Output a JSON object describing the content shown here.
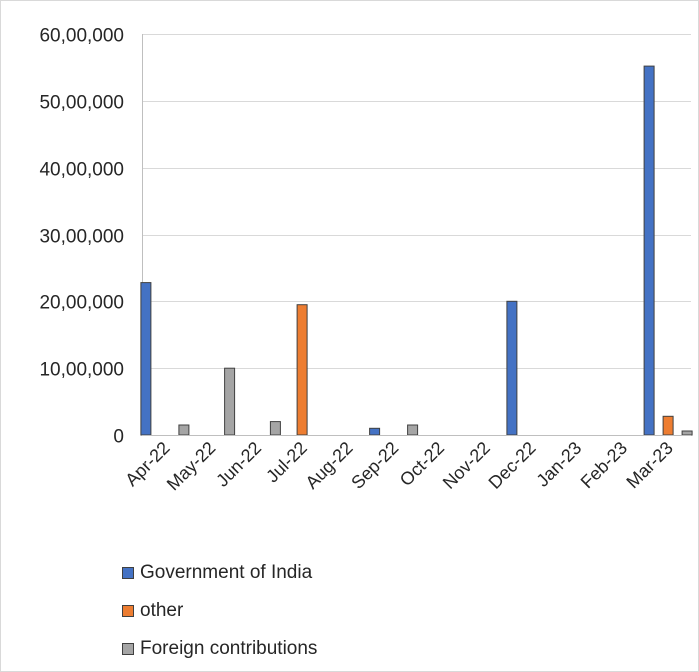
{
  "chart_data": {
    "type": "bar",
    "title": "",
    "xlabel": "",
    "ylabel": "",
    "categories": [
      "Apr-22",
      "May-22",
      "Jun-22",
      "Jul-22",
      "Aug-22",
      "Sep-22",
      "Oct-22",
      "Nov-22",
      "Dec-22",
      "Jan-23",
      "Feb-23",
      "Mar-23"
    ],
    "series": [
      {
        "name": "Government of India",
        "color": "#4472c4",
        "values": [
          2280000,
          0,
          0,
          0,
          0,
          100000,
          0,
          0,
          2000000,
          0,
          0,
          5520000
        ]
      },
      {
        "name": "other",
        "color": "#ed7d31",
        "values": [
          0,
          0,
          0,
          1950000,
          0,
          0,
          0,
          0,
          0,
          0,
          0,
          280000
        ]
      },
      {
        "name": "Foreign contributions",
        "color": "#a5a5a5",
        "values": [
          150000,
          1000000,
          200000,
          0,
          0,
          150000,
          0,
          0,
          0,
          0,
          0,
          60000
        ]
      }
    ],
    "ylim": [
      0,
      6000000
    ],
    "yticks": [
      0,
      1000000,
      2000000,
      3000000,
      4000000,
      5000000,
      6000000
    ],
    "ytick_labels": [
      "0",
      "10,00,000",
      "20,00,000",
      "30,00,000",
      "40,00,000",
      "50,00,000",
      "60,00,000"
    ],
    "grid": true,
    "legend_position": "bottom"
  }
}
